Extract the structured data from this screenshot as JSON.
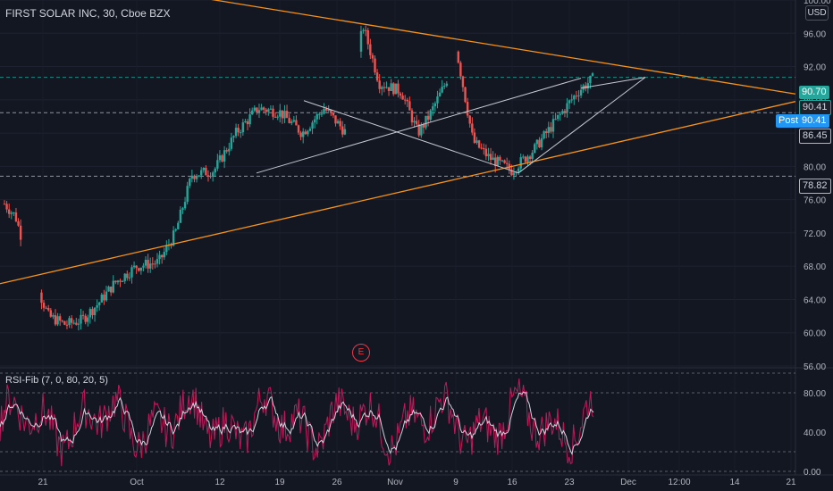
{
  "header": {
    "title": "FIRST SOLAR INC, 30, Cboe BZX"
  },
  "currency": "USD",
  "earnings_marker": "E",
  "rsi": {
    "label": "RSI-Fib (7, 0, 80, 20, 5)"
  },
  "price_tags": {
    "last": "90.70",
    "prev": "90.41",
    "post_label": "Post",
    "post": "90.41",
    "upper_line": "86.45",
    "lower_line": "78.82"
  },
  "colors": {
    "bg": "#131722",
    "up": "#26a69a",
    "down": "#ef5350",
    "trend": "#f7931a",
    "wedge": "#c5c8d0",
    "rsi": "#c2185b",
    "rsi_ma": "#d1d4dc",
    "tag_last": "#26a69a",
    "tag_post": "#2196f3"
  },
  "chart_data": {
    "type": "candlestick",
    "title": "FIRST SOLAR INC, 30, Cboe BZX",
    "x_ticks": [
      "21",
      "Oct",
      "12",
      "19",
      "26",
      "Nov",
      "9",
      "16",
      "23",
      "Dec",
      "12:00",
      "14",
      "21"
    ],
    "y_ticks": [
      56,
      60,
      64,
      68,
      72,
      76,
      80,
      84,
      88,
      92,
      96,
      100
    ],
    "ylim": [
      56,
      100
    ],
    "price_path": [
      {
        "t": 0,
        "p": 75.5
      },
      {
        "t": 2,
        "p": 74.0
      },
      {
        "t": 5,
        "p": 67.0
      },
      {
        "t": 8,
        "p": 62.0
      },
      {
        "t": 11,
        "p": 61.0
      },
      {
        "t": 14,
        "p": 61.5
      },
      {
        "t": 17,
        "p": 63.5
      },
      {
        "t": 20,
        "p": 66.0
      },
      {
        "t": 24,
        "p": 68.0
      },
      {
        "t": 28,
        "p": 68.5
      },
      {
        "t": 31,
        "p": 72.0
      },
      {
        "t": 34,
        "p": 79.0
      },
      {
        "t": 38,
        "p": 79.5
      },
      {
        "t": 42,
        "p": 84.0
      },
      {
        "t": 46,
        "p": 87.0
      },
      {
        "t": 50,
        "p": 86.5
      },
      {
        "t": 54,
        "p": 84.0
      },
      {
        "t": 58,
        "p": 87.0
      },
      {
        "t": 62,
        "p": 84.0
      },
      {
        "t": 65,
        "p": 97.0
      },
      {
        "t": 68,
        "p": 90.0
      },
      {
        "t": 72,
        "p": 89.0
      },
      {
        "t": 75,
        "p": 84.0
      },
      {
        "t": 77,
        "p": 86.0
      },
      {
        "t": 80,
        "p": 90.0
      },
      {
        "t": 82,
        "p": 94.0
      },
      {
        "t": 85,
        "p": 83.0
      },
      {
        "t": 88,
        "p": 81.0
      },
      {
        "t": 92,
        "p": 79.5
      },
      {
        "t": 96,
        "p": 82.0
      },
      {
        "t": 100,
        "p": 85.5
      },
      {
        "t": 104,
        "p": 89.0
      },
      {
        "t": 107,
        "p": 90.7
      }
    ],
    "levels": [
      {
        "value": 90.7,
        "style": "dashed"
      },
      {
        "value": 86.45,
        "style": "dashed"
      },
      {
        "value": 78.82,
        "style": "dashed"
      }
    ],
    "last_price": 90.7,
    "rsi": {
      "ylim": [
        0,
        100
      ],
      "y_ticks": [
        0,
        40,
        80
      ],
      "bands": [
        20,
        80
      ]
    }
  }
}
